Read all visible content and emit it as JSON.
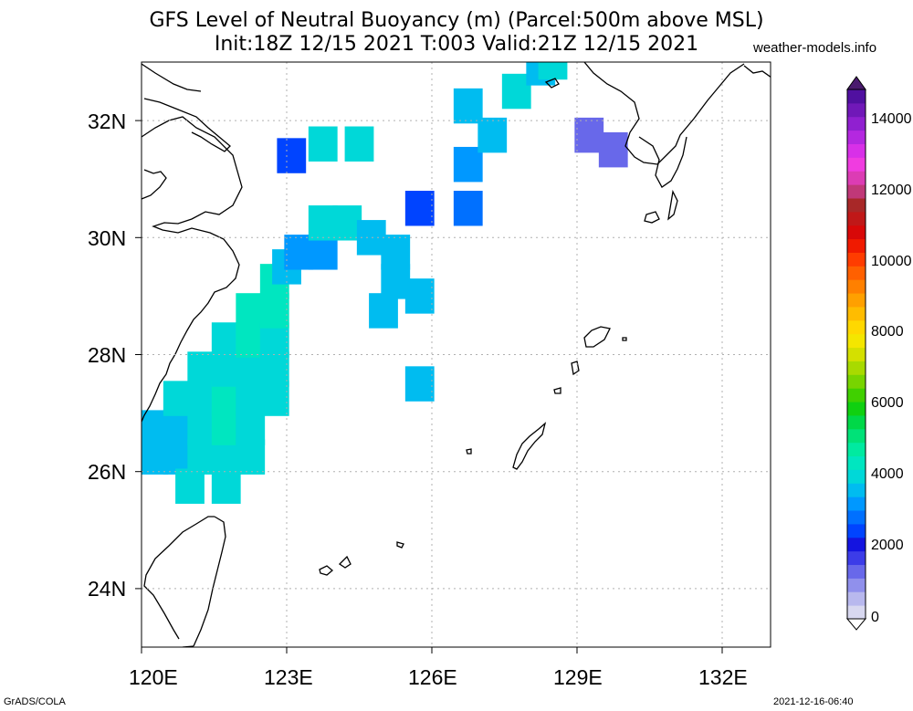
{
  "header": {
    "title_line1": "GFS Level of Neutral Buoyancy (m) (Parcel:500m above MSL)",
    "title_line2": "Init:18Z 12/15 2021 T:003 Valid:21Z 12/15 2021",
    "site": "weather-models.info"
  },
  "axes": {
    "x_ticks": [
      "120E",
      "123E",
      "126E",
      "129E",
      "132E"
    ],
    "y_ticks": [
      "24N",
      "26N",
      "28N",
      "30N",
      "32N"
    ],
    "lon_range": [
      120,
      133
    ],
    "lat_range": [
      23,
      33
    ]
  },
  "colorbar": {
    "labels": [
      "14000",
      "12000",
      "10000",
      "8000",
      "6000",
      "4000",
      "2000",
      "0"
    ],
    "range": [
      0,
      15000
    ],
    "colors": [
      "#d8d8f0",
      "#b8b8ee",
      "#9090ec",
      "#6868ea",
      "#3c3ce8",
      "#1414e0",
      "#0044ff",
      "#0070ff",
      "#0098ff",
      "#00bcf0",
      "#00d8d8",
      "#00e6c0",
      "#00eaa0",
      "#00e278",
      "#00d848",
      "#10d010",
      "#40d000",
      "#78d400",
      "#a8da00",
      "#d4e000",
      "#f4e600",
      "#ffd800",
      "#ffbc00",
      "#ffa000",
      "#ff8000",
      "#ff6000",
      "#ff3c00",
      "#f01a00",
      "#d80808",
      "#c01818",
      "#a82828",
      "#c03878",
      "#dc3cb4",
      "#f03ce0",
      "#d830e8",
      "#b428e0",
      "#9020d0",
      "#7018b8",
      "#5010a0"
    ]
  },
  "chart_data": {
    "type": "heatmap",
    "title": "GFS Level of Neutral Buoyancy (m) (Parcel:500m above MSL)",
    "units": "m",
    "x_range": [
      120,
      133
    ],
    "y_range": [
      23,
      33
    ],
    "note_cells": "each cell: [lon, lat, value_m]",
    "cells": [
      [
        120.25,
        26.25,
        3800
      ],
      [
        120.25,
        26.75,
        3800
      ],
      [
        120.75,
        26.25,
        3800
      ],
      [
        120.75,
        26.75,
        3800
      ],
      [
        120.75,
        27.25,
        3900
      ],
      [
        121.0,
        25.75,
        3900
      ],
      [
        121.25,
        26.25,
        3900
      ],
      [
        121.25,
        26.75,
        4100
      ],
      [
        121.25,
        27.25,
        4100
      ],
      [
        121.25,
        27.75,
        4000
      ],
      [
        121.75,
        25.75,
        4100
      ],
      [
        121.75,
        26.25,
        4200
      ],
      [
        121.75,
        26.75,
        4300
      ],
      [
        121.75,
        27.25,
        4300
      ],
      [
        121.75,
        27.75,
        4200
      ],
      [
        121.75,
        28.25,
        4100
      ],
      [
        122.25,
        26.25,
        4000
      ],
      [
        122.25,
        26.75,
        4200
      ],
      [
        122.25,
        27.25,
        4200
      ],
      [
        122.25,
        27.75,
        4200
      ],
      [
        122.25,
        28.25,
        4300
      ],
      [
        122.25,
        28.75,
        4300
      ],
      [
        122.75,
        27.25,
        3900
      ],
      [
        122.75,
        27.75,
        4100
      ],
      [
        122.75,
        28.25,
        4200
      ],
      [
        122.75,
        28.75,
        4300
      ],
      [
        122.75,
        29.25,
        4600
      ],
      [
        123.0,
        29.5,
        3600
      ],
      [
        123.25,
        29.75,
        3400
      ],
      [
        123.75,
        29.75,
        3300
      ],
      [
        123.75,
        30.25,
        4000
      ],
      [
        124.25,
        30.25,
        4000
      ],
      [
        124.75,
        30.0,
        3700
      ],
      [
        125.25,
        29.75,
        3500
      ],
      [
        125.25,
        29.25,
        3600
      ],
      [
        125.0,
        28.75,
        3700
      ],
      [
        125.75,
        29.0,
        3500
      ],
      [
        125.75,
        30.5,
        2400
      ],
      [
        125.75,
        27.5,
        3500
      ],
      [
        123.75,
        31.6,
        4100
      ],
      [
        124.5,
        31.6,
        4000
      ],
      [
        123.1,
        31.4,
        2500
      ],
      [
        126.75,
        30.5,
        2800
      ],
      [
        126.75,
        31.25,
        3100
      ],
      [
        127.25,
        31.75,
        3600
      ],
      [
        127.75,
        32.5,
        4100
      ],
      [
        128.25,
        32.9,
        3800
      ],
      [
        126.75,
        32.25,
        3700
      ],
      [
        129.25,
        31.75,
        1500
      ],
      [
        129.75,
        31.5,
        1400
      ],
      [
        128.5,
        33.0,
        3900
      ]
    ]
  },
  "footer": {
    "left": "GrADS/COLA",
    "right": "2021-12-16-06:40"
  }
}
